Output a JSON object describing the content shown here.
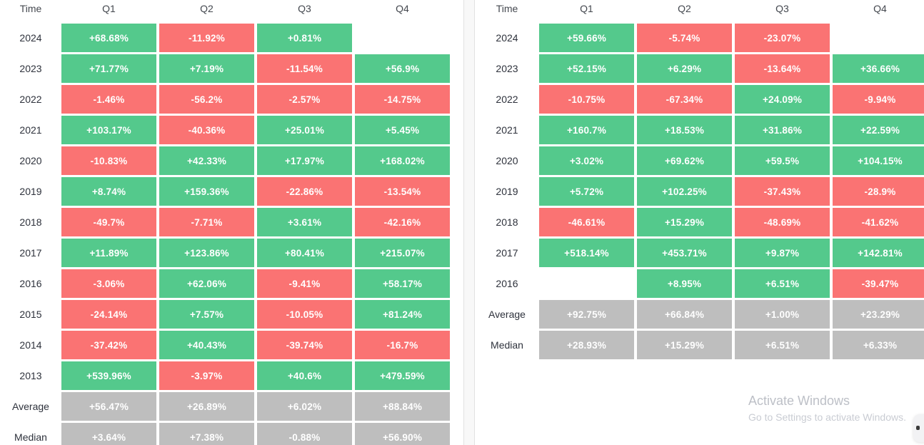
{
  "colors": {
    "positive": "#54c98c",
    "negative": "#fa7373",
    "neutral": "#bebebe"
  },
  "watermark": {
    "title": "Activate Windows",
    "subtitle": "Go to Settings to activate Windows."
  },
  "tables": [
    {
      "name": "left-seasonality-table",
      "columns": [
        "Time",
        "Q1",
        "Q2",
        "Q3",
        "Q4"
      ],
      "rows": [
        {
          "label": "2024",
          "cells": [
            {
              "text": "+68.68%",
              "type": "positive"
            },
            {
              "text": "-11.92%",
              "type": "negative"
            },
            {
              "text": "+0.81%",
              "type": "positive"
            },
            {
              "text": "",
              "type": "empty"
            }
          ]
        },
        {
          "label": "2023",
          "cells": [
            {
              "text": "+71.77%",
              "type": "positive"
            },
            {
              "text": "+7.19%",
              "type": "positive"
            },
            {
              "text": "-11.54%",
              "type": "negative"
            },
            {
              "text": "+56.9%",
              "type": "positive"
            }
          ]
        },
        {
          "label": "2022",
          "cells": [
            {
              "text": "-1.46%",
              "type": "negative"
            },
            {
              "text": "-56.2%",
              "type": "negative"
            },
            {
              "text": "-2.57%",
              "type": "negative"
            },
            {
              "text": "-14.75%",
              "type": "negative"
            }
          ]
        },
        {
          "label": "2021",
          "cells": [
            {
              "text": "+103.17%",
              "type": "positive"
            },
            {
              "text": "-40.36%",
              "type": "negative"
            },
            {
              "text": "+25.01%",
              "type": "positive"
            },
            {
              "text": "+5.45%",
              "type": "positive"
            }
          ]
        },
        {
          "label": "2020",
          "cells": [
            {
              "text": "-10.83%",
              "type": "negative"
            },
            {
              "text": "+42.33%",
              "type": "positive"
            },
            {
              "text": "+17.97%",
              "type": "positive"
            },
            {
              "text": "+168.02%",
              "type": "positive"
            }
          ]
        },
        {
          "label": "2019",
          "cells": [
            {
              "text": "+8.74%",
              "type": "positive"
            },
            {
              "text": "+159.36%",
              "type": "positive"
            },
            {
              "text": "-22.86%",
              "type": "negative"
            },
            {
              "text": "-13.54%",
              "type": "negative"
            }
          ]
        },
        {
          "label": "2018",
          "cells": [
            {
              "text": "-49.7%",
              "type": "negative"
            },
            {
              "text": "-7.71%",
              "type": "negative"
            },
            {
              "text": "+3.61%",
              "type": "positive"
            },
            {
              "text": "-42.16%",
              "type": "negative"
            }
          ]
        },
        {
          "label": "2017",
          "cells": [
            {
              "text": "+11.89%",
              "type": "positive"
            },
            {
              "text": "+123.86%",
              "type": "positive"
            },
            {
              "text": "+80.41%",
              "type": "positive"
            },
            {
              "text": "+215.07%",
              "type": "positive"
            }
          ]
        },
        {
          "label": "2016",
          "cells": [
            {
              "text": "-3.06%",
              "type": "negative"
            },
            {
              "text": "+62.06%",
              "type": "positive"
            },
            {
              "text": "-9.41%",
              "type": "negative"
            },
            {
              "text": "+58.17%",
              "type": "positive"
            }
          ]
        },
        {
          "label": "2015",
          "cells": [
            {
              "text": "-24.14%",
              "type": "negative"
            },
            {
              "text": "+7.57%",
              "type": "positive"
            },
            {
              "text": "-10.05%",
              "type": "negative"
            },
            {
              "text": "+81.24%",
              "type": "positive"
            }
          ]
        },
        {
          "label": "2014",
          "cells": [
            {
              "text": "-37.42%",
              "type": "negative"
            },
            {
              "text": "+40.43%",
              "type": "positive"
            },
            {
              "text": "-39.74%",
              "type": "negative"
            },
            {
              "text": "-16.7%",
              "type": "negative"
            }
          ]
        },
        {
          "label": "2013",
          "cells": [
            {
              "text": "+539.96%",
              "type": "positive"
            },
            {
              "text": "-3.97%",
              "type": "negative"
            },
            {
              "text": "+40.6%",
              "type": "positive"
            },
            {
              "text": "+479.59%",
              "type": "positive"
            }
          ]
        },
        {
          "label": "Average",
          "cells": [
            {
              "text": "+56.47%",
              "type": "neutral"
            },
            {
              "text": "+26.89%",
              "type": "neutral"
            },
            {
              "text": "+6.02%",
              "type": "neutral"
            },
            {
              "text": "+88.84%",
              "type": "neutral"
            }
          ]
        },
        {
          "label": "Median",
          "cells": [
            {
              "text": "+3.64%",
              "type": "neutral"
            },
            {
              "text": "+7.38%",
              "type": "neutral"
            },
            {
              "text": "-0.88%",
              "type": "neutral"
            },
            {
              "text": "+56.90%",
              "type": "neutral"
            }
          ]
        }
      ]
    },
    {
      "name": "right-seasonality-table",
      "columns": [
        "Time",
        "Q1",
        "Q2",
        "Q3",
        "Q4"
      ],
      "rows": [
        {
          "label": "2024",
          "cells": [
            {
              "text": "+59.66%",
              "type": "positive"
            },
            {
              "text": "-5.74%",
              "type": "negative"
            },
            {
              "text": "-23.07%",
              "type": "negative"
            },
            {
              "text": "",
              "type": "empty"
            }
          ]
        },
        {
          "label": "2023",
          "cells": [
            {
              "text": "+52.15%",
              "type": "positive"
            },
            {
              "text": "+6.29%",
              "type": "positive"
            },
            {
              "text": "-13.64%",
              "type": "negative"
            },
            {
              "text": "+36.66%",
              "type": "positive"
            }
          ]
        },
        {
          "label": "2022",
          "cells": [
            {
              "text": "-10.75%",
              "type": "negative"
            },
            {
              "text": "-67.34%",
              "type": "negative"
            },
            {
              "text": "+24.09%",
              "type": "positive"
            },
            {
              "text": "-9.94%",
              "type": "negative"
            }
          ]
        },
        {
          "label": "2021",
          "cells": [
            {
              "text": "+160.7%",
              "type": "positive"
            },
            {
              "text": "+18.53%",
              "type": "positive"
            },
            {
              "text": "+31.86%",
              "type": "positive"
            },
            {
              "text": "+22.59%",
              "type": "positive"
            }
          ]
        },
        {
          "label": "2020",
          "cells": [
            {
              "text": "+3.02%",
              "type": "positive"
            },
            {
              "text": "+69.62%",
              "type": "positive"
            },
            {
              "text": "+59.5%",
              "type": "positive"
            },
            {
              "text": "+104.15%",
              "type": "positive"
            }
          ]
        },
        {
          "label": "2019",
          "cells": [
            {
              "text": "+5.72%",
              "type": "positive"
            },
            {
              "text": "+102.25%",
              "type": "positive"
            },
            {
              "text": "-37.43%",
              "type": "negative"
            },
            {
              "text": "-28.9%",
              "type": "negative"
            }
          ]
        },
        {
          "label": "2018",
          "cells": [
            {
              "text": "-46.61%",
              "type": "negative"
            },
            {
              "text": "+15.29%",
              "type": "positive"
            },
            {
              "text": "-48.69%",
              "type": "negative"
            },
            {
              "text": "-41.62%",
              "type": "negative"
            }
          ]
        },
        {
          "label": "2017",
          "cells": [
            {
              "text": "+518.14%",
              "type": "positive"
            },
            {
              "text": "+453.71%",
              "type": "positive"
            },
            {
              "text": "+9.87%",
              "type": "positive"
            },
            {
              "text": "+142.81%",
              "type": "positive"
            }
          ]
        },
        {
          "label": "2016",
          "cells": [
            {
              "text": "",
              "type": "empty"
            },
            {
              "text": "+8.95%",
              "type": "positive"
            },
            {
              "text": "+6.51%",
              "type": "positive"
            },
            {
              "text": "-39.47%",
              "type": "negative"
            }
          ]
        },
        {
          "label": "Average",
          "cells": [
            {
              "text": "+92.75%",
              "type": "neutral"
            },
            {
              "text": "+66.84%",
              "type": "neutral"
            },
            {
              "text": "+1.00%",
              "type": "neutral"
            },
            {
              "text": "+23.29%",
              "type": "neutral"
            }
          ]
        },
        {
          "label": "Median",
          "cells": [
            {
              "text": "+28.93%",
              "type": "neutral"
            },
            {
              "text": "+15.29%",
              "type": "neutral"
            },
            {
              "text": "+6.51%",
              "type": "neutral"
            },
            {
              "text": "+6.33%",
              "type": "neutral"
            }
          ]
        }
      ]
    }
  ]
}
